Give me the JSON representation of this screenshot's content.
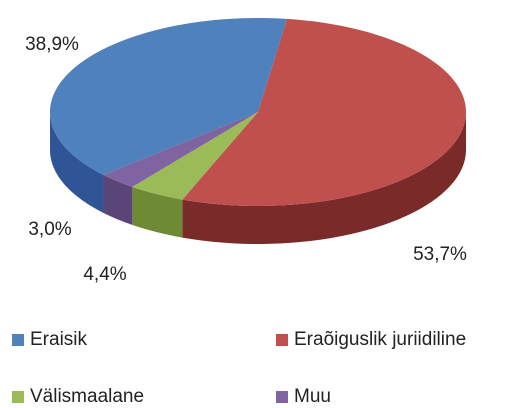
{
  "chart_data": {
    "type": "pie3d",
    "categories": [
      "Eraisik",
      "Eraõiguslik juriidiline",
      "Välismaalane",
      "Muu"
    ],
    "values": [
      38.9,
      53.7,
      4.4,
      3.0
    ],
    "value_labels": [
      "38,9%",
      "53,7%",
      "4,4%",
      "3,0%"
    ],
    "colors": [
      "#4f81bd",
      "#c0504d",
      "#9bbb59",
      "#8064a2"
    ],
    "side_colors": [
      "#2f5597",
      "#7a2a28",
      "#6e8a34",
      "#5a4478"
    ],
    "legend": "bottom"
  }
}
